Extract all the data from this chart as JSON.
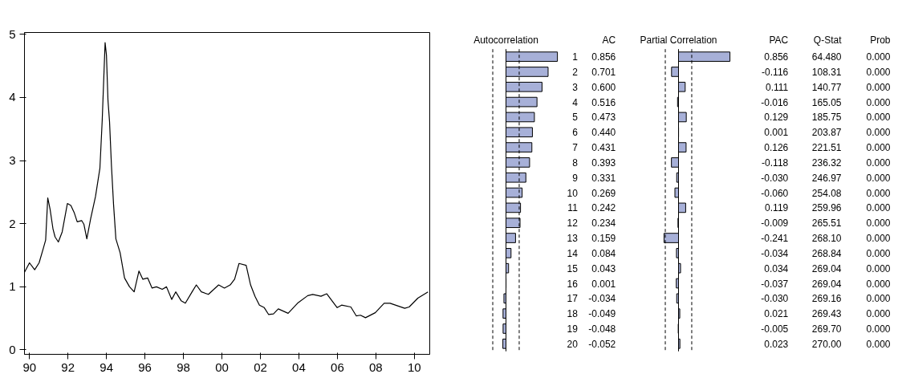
{
  "chart_data": [
    {
      "type": "line",
      "color": "#000000",
      "line_style": "solid",
      "marker": "none",
      "grid": false,
      "x": [
        1989.74,
        1990.0,
        1990.27,
        1990.5,
        1990.72,
        1990.84,
        1990.95,
        1991.07,
        1991.22,
        1991.33,
        1991.5,
        1991.7,
        1991.97,
        1992.15,
        1992.33,
        1992.48,
        1992.71,
        1992.83,
        1992.98,
        1993.18,
        1993.43,
        1993.66,
        1993.78,
        1993.93,
        1994.0,
        1994.08,
        1994.16,
        1994.26,
        1994.37,
        1994.49,
        1994.71,
        1994.94,
        1995.2,
        1995.44,
        1995.69,
        1995.89,
        1996.14,
        1996.37,
        1996.6,
        1996.9,
        1997.12,
        1997.39,
        1997.6,
        1997.88,
        1998.1,
        1998.45,
        1998.67,
        1998.93,
        1999.3,
        1999.83,
        2000.13,
        2000.43,
        2000.66,
        2000.89,
        2001.26,
        2001.49,
        2001.72,
        2001.95,
        2002.2,
        2002.43,
        2002.68,
        2002.93,
        2003.44,
        2003.93,
        2004.46,
        2004.72,
        2005.15,
        2005.45,
        2005.99,
        2006.22,
        2006.7,
        2006.98,
        2007.2,
        2007.46,
        2007.97,
        2008.43,
        2008.74,
        2009.5,
        2009.73,
        2010.18,
        2010.71
      ],
      "values": [
        1.23,
        1.38,
        1.27,
        1.38,
        1.61,
        1.74,
        2.41,
        2.23,
        1.92,
        1.79,
        1.71,
        1.87,
        2.32,
        2.29,
        2.17,
        2.03,
        2.05,
        1.99,
        1.76,
        2.08,
        2.43,
        2.88,
        3.64,
        4.87,
        4.67,
        3.95,
        3.62,
        2.92,
        2.3,
        1.76,
        1.54,
        1.14,
        1.0,
        0.92,
        1.25,
        1.12,
        1.14,
        0.98,
        1.0,
        0.96,
        1.0,
        0.8,
        0.92,
        0.78,
        0.74,
        0.92,
        1.03,
        0.92,
        0.88,
        1.03,
        0.98,
        1.03,
        1.12,
        1.37,
        1.34,
        1.03,
        0.85,
        0.71,
        0.67,
        0.56,
        0.57,
        0.65,
        0.58,
        0.74,
        0.86,
        0.88,
        0.85,
        0.89,
        0.67,
        0.71,
        0.68,
        0.54,
        0.55,
        0.51,
        0.59,
        0.74,
        0.74,
        0.66,
        0.68,
        0.82,
        0.92
      ],
      "xlim": [
        1989.74,
        2010.8
      ],
      "ylim": [
        -0.07,
        5.03
      ],
      "xticks": [
        {
          "value": 1990,
          "label": "90"
        },
        {
          "value": 1992,
          "label": "92"
        },
        {
          "value": 1994,
          "label": "94"
        },
        {
          "value": 1996,
          "label": "96"
        },
        {
          "value": 1998,
          "label": "98"
        },
        {
          "value": 2000,
          "label": "00"
        },
        {
          "value": 2002,
          "label": "02"
        },
        {
          "value": 2004,
          "label": "04"
        },
        {
          "value": 2006,
          "label": "06"
        },
        {
          "value": 2008,
          "label": "08"
        },
        {
          "value": 2010,
          "label": "10"
        }
      ],
      "yticks": [
        0,
        1,
        2,
        3,
        4,
        5
      ]
    },
    {
      "type": "bar",
      "orientation": "horizontal",
      "title": "Autocorrelation",
      "xlabel": "AC",
      "color": "#a7b0d8",
      "tick_labels": "y",
      "categories": [
        "1",
        "2",
        "3",
        "4",
        "5",
        "6",
        "7",
        "8",
        "9",
        "10",
        "11",
        "12",
        "13",
        "14",
        "15",
        "16",
        "17",
        "18",
        "19",
        "20"
      ],
      "values": [
        0.856,
        0.701,
        0.6,
        0.516,
        0.473,
        0.44,
        0.431,
        0.393,
        0.331,
        0.269,
        0.242,
        0.234,
        0.159,
        0.084,
        0.043,
        0.001,
        -0.034,
        -0.049,
        -0.048,
        -0.052
      ],
      "value_labels": [
        "0.856",
        "0.701",
        "0.600",
        "0.516",
        "0.473",
        "0.440",
        "0.431",
        "0.393",
        "0.331",
        "0.269",
        "0.242",
        "0.234",
        "0.159",
        "0.084",
        "0.043",
        "0.001",
        "-0.034",
        "-0.049",
        "-0.048",
        "-0.052"
      ],
      "ref_lines": [
        {
          "axis": "x",
          "value": -0.22,
          "line_style": "dashed"
        },
        {
          "axis": "x",
          "value": 0.22,
          "line_style": "dashed"
        }
      ]
    },
    {
      "type": "bar",
      "orientation": "horizontal",
      "title": "Partial Correlation",
      "xlabel": "PAC",
      "color": "#a7b0d8",
      "tick_labels": false,
      "categories": [
        null,
        null,
        null,
        null,
        null,
        null,
        null,
        null,
        null,
        null,
        null,
        null,
        null,
        null,
        null,
        null,
        null,
        null,
        null,
        null
      ],
      "values": [
        0.856,
        -0.116,
        0.111,
        -0.016,
        0.129,
        0.001,
        0.126,
        -0.118,
        -0.03,
        -0.06,
        0.119,
        -0.009,
        -0.241,
        -0.034,
        0.034,
        -0.037,
        -0.03,
        0.021,
        -0.005,
        0.023
      ],
      "value_labels": [
        "0.856",
        "-0.116",
        "0.111",
        "-0.016",
        "0.129",
        "0.001",
        "0.126",
        "-0.118",
        "-0.030",
        "-0.060",
        "0.119",
        "-0.009",
        "-0.241",
        "-0.034",
        "0.034",
        "-0.037",
        "-0.030",
        "0.021",
        "-0.005",
        "0.023"
      ],
      "ref_lines": [
        {
          "axis": "x",
          "value": -0.22,
          "line_style": "dashed"
        },
        {
          "axis": "x",
          "value": 0.22,
          "line_style": "dashed"
        }
      ]
    },
    {
      "type": "other",
      "title": "Q-Stat",
      "annotations": [
        "64.480",
        "108.31",
        "140.77",
        "165.05",
        "185.75",
        "203.87",
        "221.51",
        "236.32",
        "246.97",
        "254.08",
        "259.96",
        "265.51",
        "268.10",
        "268.84",
        "269.04",
        "269.04",
        "269.16",
        "269.43",
        "269.70",
        "270.00"
      ]
    },
    {
      "type": "other",
      "title": "Prob",
      "annotations": [
        "0.000",
        "0.000",
        "0.000",
        "0.000",
        "0.000",
        "0.000",
        "0.000",
        "0.000",
        "0.000",
        "0.000",
        "0.000",
        "0.000",
        "0.000",
        "0.000",
        "0.000",
        "0.000",
        "0.000",
        "0.000",
        "0.000",
        "0.000"
      ]
    }
  ]
}
